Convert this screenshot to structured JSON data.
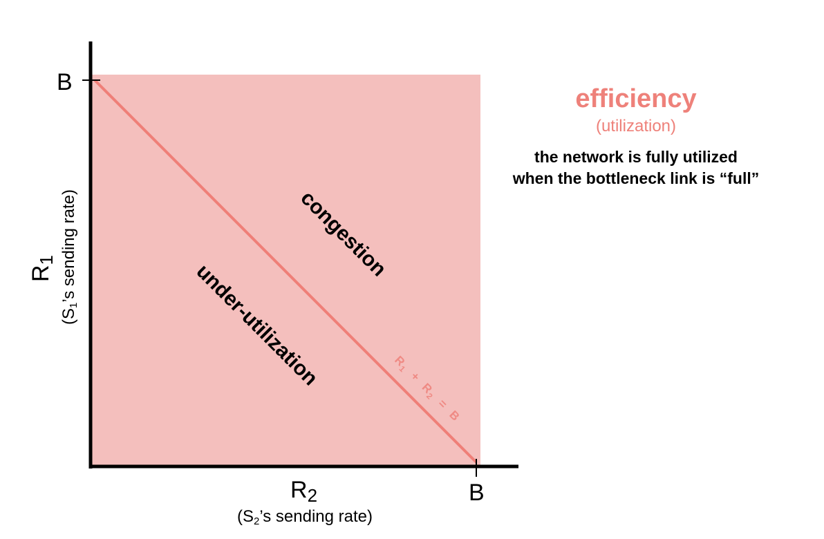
{
  "y_axis": {
    "tick": "B",
    "symbol": "R",
    "subscript": "1",
    "caption_pre": "(S",
    "caption_sub": "1",
    "caption_post": "’s sending rate)"
  },
  "x_axis": {
    "tick": "B",
    "symbol": "R",
    "subscript": "2",
    "caption_pre": "(S",
    "caption_sub": "2",
    "caption_post": "’s sending rate)"
  },
  "regions": {
    "congestion": "congestion",
    "under_utilization": "under-utilization"
  },
  "efficiency_line": {
    "r1": "R",
    "r1_sub": "1",
    "plus": "+",
    "r2": "R",
    "r2_sub": "2",
    "equals": "=",
    "b": "B",
    "color": "#ef7f78"
  },
  "panel": {
    "title": "efficiency",
    "subtitle": "(utilization)",
    "line1": "the network is fully utilized",
    "line2": "when the bottleneck link is “full”",
    "accent_color": "#ee817a"
  },
  "colors": {
    "region_fill": "#f4bfbd"
  }
}
